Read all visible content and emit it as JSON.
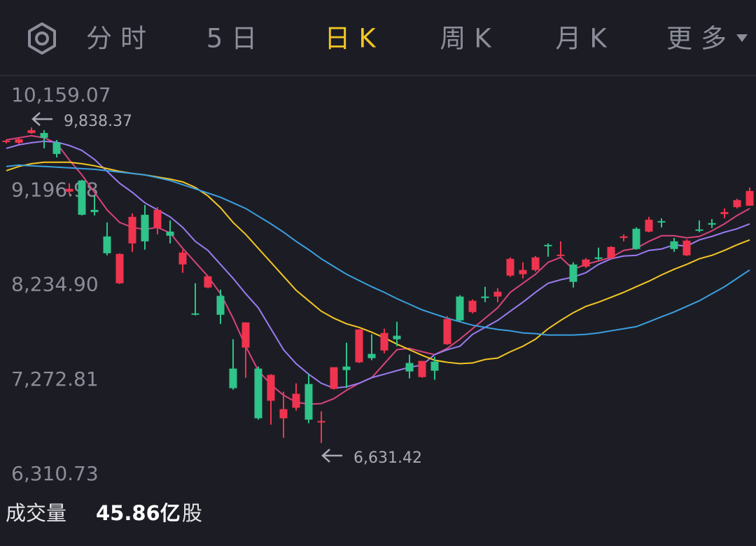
{
  "tabs": [
    "分时",
    "5日",
    "日K",
    "周K",
    "月K",
    "更多"
  ],
  "active_tab": 2,
  "chart_data": {
    "type": "candlestick",
    "ylim": [
      6310.73,
      10159.07
    ],
    "yticks": [
      {
        "value": 10159.07,
        "label": "10,159.07"
      },
      {
        "value": 9196.98,
        "label": "9,196.98"
      },
      {
        "value": 8234.9,
        "label": "8,234.90"
      },
      {
        "value": 7272.81,
        "label": "7,272.81"
      },
      {
        "value": 6310.73,
        "label": "6,310.73"
      }
    ],
    "up_color": "#f0344f",
    "down_color": "#2ec48a",
    "high_annotation": {
      "value": 9838.37,
      "label": "9,838.37"
    },
    "low_annotation": {
      "value": 6631.42,
      "label": "6,631.42"
    },
    "ohlc": [
      [
        9690,
        9718,
        9676,
        9704
      ],
      [
        9683,
        9733,
        9669,
        9718
      ],
      [
        9782,
        9838.37,
        9775,
        9811
      ],
      [
        9782,
        9811,
        9626,
        9733
      ],
      [
        9683,
        9711,
        9534,
        9569
      ],
      [
        9186,
        9271,
        9157,
        9214
      ],
      [
        9299,
        9306,
        8944,
        8951
      ],
      [
        9001,
        9143,
        8944,
        8979
      ],
      [
        8731,
        8873,
        8539,
        8560
      ],
      [
        8255,
        8560,
        8248,
        8553
      ],
      [
        8660,
        8965,
        8574,
        8930
      ],
      [
        8951,
        9050,
        8596,
        8681
      ],
      [
        8816,
        9029,
        8752,
        9001
      ],
      [
        8780,
        8894,
        8660,
        8738
      ],
      [
        8446,
        8596,
        8361,
        8567
      ],
      [
        7949,
        8255,
        7928,
        7935
      ],
      [
        8212,
        8326,
        8205,
        8326
      ],
      [
        8127,
        8191,
        7842,
        7935
      ],
      [
        7388,
        7686,
        7174,
        7189
      ],
      [
        7601,
        7857,
        7295,
        7857
      ],
      [
        7388,
        7409,
        6869,
        6883
      ],
      [
        7061,
        7331,
        6819,
        7324
      ],
      [
        6883,
        7153,
        6684,
        6976
      ],
      [
        6990,
        7238,
        6961,
        7132
      ],
      [
        7231,
        7331,
        6833,
        6869
      ],
      [
        6840,
        6954,
        6631.42,
        6855
      ],
      [
        7182,
        7402,
        7175,
        7402
      ],
      [
        7409,
        7651,
        7189,
        7373
      ],
      [
        7452,
        7786,
        7445,
        7786
      ],
      [
        7537,
        7736,
        7473,
        7494
      ],
      [
        7572,
        7793,
        7544,
        7750
      ],
      [
        7722,
        7864,
        7615,
        7686
      ],
      [
        7445,
        7530,
        7288,
        7359
      ],
      [
        7302,
        7466,
        7295,
        7466
      ],
      [
        7459,
        7508,
        7274,
        7366
      ],
      [
        7636,
        7921,
        7630,
        7892
      ],
      [
        8120,
        8134,
        7864,
        7878
      ],
      [
        7963,
        8091,
        7949,
        8077
      ],
      [
        8120,
        8219,
        8063,
        8105
      ],
      [
        8120,
        8205,
        8063,
        8169
      ],
      [
        8333,
        8518,
        8319,
        8503
      ],
      [
        8347,
        8468,
        8304,
        8390
      ],
      [
        8390,
        8532,
        8375,
        8518
      ],
      [
        8645,
        8660,
        8525,
        8638
      ],
      [
        8532,
        8681,
        8525,
        8546
      ],
      [
        8446,
        8468,
        8212,
        8269
      ],
      [
        8425,
        8510,
        8411,
        8496
      ],
      [
        8518,
        8617,
        8489,
        8503
      ],
      [
        8510,
        8631,
        8503,
        8624
      ],
      [
        8716,
        8752,
        8681,
        8731
      ],
      [
        8809,
        8823,
        8596,
        8603
      ],
      [
        8780,
        8930,
        8773,
        8901
      ],
      [
        8887,
        8915,
        8823,
        8873
      ],
      [
        8681,
        8716,
        8574,
        8603
      ],
      [
        8539,
        8702,
        8532,
        8688
      ],
      [
        8802,
        8894,
        8773,
        8788
      ],
      [
        8866,
        8908,
        8816,
        8851
      ],
      [
        8958,
        9015,
        8915,
        8979
      ],
      [
        9029,
        9114,
        9015,
        9100
      ],
      [
        9043,
        9228,
        9043,
        9193
      ]
    ],
    "lines": [
      {
        "color": "#d8437c",
        "values": [
          9712,
          9733,
          9754,
          9733,
          9676,
          9508,
          9356,
          9179,
          9001,
          8873,
          8823,
          8802,
          8823,
          8766,
          8610,
          8468,
          8326,
          8149,
          7900,
          7615,
          7367,
          7225,
          7118,
          7047,
          7026,
          7033,
          7083,
          7168,
          7239,
          7296,
          7438,
          7580,
          7594,
          7559,
          7530,
          7594,
          7687,
          7793,
          7900,
          8006,
          8163,
          8255,
          8347,
          8468,
          8518,
          8397,
          8447,
          8482,
          8518,
          8589,
          8610,
          8681,
          8738,
          8738,
          8717,
          8731,
          8788,
          8859,
          8944,
          9015
        ]
      },
      {
        "color": "#9a7cf2",
        "values": [
          9626,
          9662,
          9683,
          9698,
          9690,
          9655,
          9605,
          9513,
          9392,
          9271,
          9179,
          9072,
          9001,
          8930,
          8823,
          8681,
          8589,
          8447,
          8305,
          8149,
          8006,
          7793,
          7580,
          7438,
          7331,
          7239,
          7189,
          7203,
          7239,
          7296,
          7331,
          7367,
          7402,
          7424,
          7530,
          7580,
          7615,
          7736,
          7807,
          7878,
          7971,
          8063,
          8163,
          8255,
          8291,
          8319,
          8362,
          8447,
          8504,
          8532,
          8539,
          8589,
          8603,
          8646,
          8632,
          8696,
          8731,
          8774,
          8809,
          8859
        ]
      },
      {
        "color": "#f3c624",
        "values": [
          9399,
          9442,
          9470,
          9485,
          9485,
          9485,
          9470,
          9449,
          9420,
          9392,
          9371,
          9356,
          9335,
          9314,
          9285,
          9229,
          9143,
          9023,
          8873,
          8752,
          8610,
          8468,
          8326,
          8184,
          8077,
          7971,
          7900,
          7843,
          7807,
          7758,
          7701,
          7637,
          7580,
          7523,
          7473,
          7452,
          7438,
          7445,
          7481,
          7495,
          7559,
          7615,
          7687,
          7793,
          7878,
          7956,
          8020,
          8063,
          8113,
          8163,
          8220,
          8276,
          8340,
          8397,
          8447,
          8504,
          8539,
          8589,
          8646,
          8696
        ]
      },
      {
        "color": "#3b9fe0",
        "values": [
          9442,
          9456,
          9449,
          9442,
          9435,
          9428,
          9420,
          9413,
          9399,
          9385,
          9371,
          9356,
          9328,
          9299,
          9257,
          9214,
          9172,
          9129,
          9072,
          9015,
          8937,
          8859,
          8774,
          8681,
          8596,
          8504,
          8425,
          8347,
          8283,
          8220,
          8163,
          8099,
          8042,
          7985,
          7942,
          7900,
          7864,
          7829,
          7807,
          7786,
          7772,
          7750,
          7743,
          7729,
          7729,
          7729,
          7736,
          7750,
          7772,
          7793,
          7814,
          7864,
          7914,
          7963,
          8020,
          8077,
          8149,
          8220,
          8305,
          8390
        ]
      }
    ]
  },
  "volume": {
    "label": "成交量",
    "value": "45.86亿",
    "unit": "股"
  }
}
